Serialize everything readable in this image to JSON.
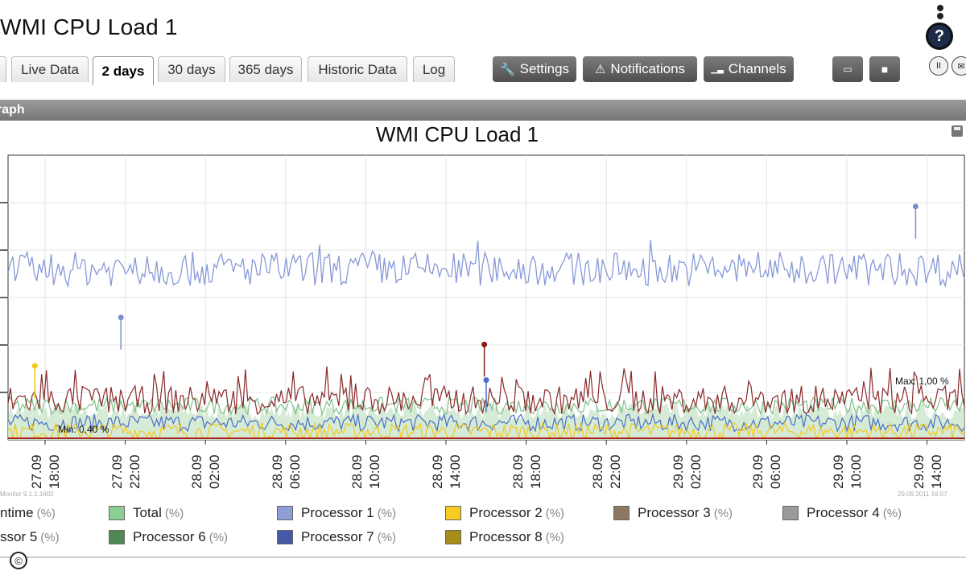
{
  "window": {
    "title": "WMI CPU Load 1"
  },
  "help": {
    "label": "?",
    "pause": "II",
    "mail": "✉"
  },
  "tabs": [
    {
      "label": "Live Data"
    },
    {
      "label": "2 days"
    },
    {
      "label": "30 days"
    },
    {
      "label": "365 days"
    },
    {
      "label": "Historic Data"
    },
    {
      "label": "Log"
    }
  ],
  "toolbar": {
    "settings": "Settings",
    "notifications": "Notifications",
    "channels": "Channels"
  },
  "panel": {
    "title": "raph"
  },
  "chart_data": {
    "type": "line",
    "title": "WMI CPU Load 1",
    "x_ticks": [
      "27.09\n18:00",
      "27.09\n22:00",
      "28.09\n02:00",
      "28.09\n06:00",
      "28.09\n10:00",
      "28.09\n14:00",
      "28.09\n18:00",
      "28.09\n22:00",
      "29.09\n02:00",
      "29.09\n06:00",
      "29.09\n10:00",
      "29.09\n14:00"
    ],
    "annotations": {
      "max": "Max: 1,00 %",
      "min": "Min: 0,40 %"
    },
    "footer_left": "Monitor 9.1.1.1602",
    "footer_right": "29.09.2011 16:07",
    "series": [
      {
        "name": "Processor 1",
        "color": "#8899d8",
        "level": 0.6,
        "amp": 0.06
      },
      {
        "name": "Processor 3",
        "color": "#8a2a2a",
        "level": 0.14,
        "amp": 0.05
      },
      {
        "name": "Total",
        "color": "#7fc08a",
        "level": 0.12,
        "amp": 0.03
      },
      {
        "name": "Processor 7",
        "color": "#4a6fc4",
        "level": 0.06,
        "amp": 0.03
      },
      {
        "name": "Processor 2",
        "color": "#f2c81c",
        "level": 0.03,
        "amp": 0.03
      }
    ]
  },
  "legend": {
    "unit": "(%)",
    "items": [
      {
        "label": "ntime",
        "color": null
      },
      {
        "label": "Total",
        "color": "#8ccf92"
      },
      {
        "label": "Processor 1",
        "color": "#8e9fd8"
      },
      {
        "label": "Processor 2",
        "color": "#f5cc1f"
      },
      {
        "label": "Processor 3",
        "color": "#8e7763"
      },
      {
        "label": "Processor 4",
        "color": "#9a9a9a"
      },
      {
        "label": "ssor 5",
        "color": null
      },
      {
        "label": "Processor 6",
        "color": "#4f8a55"
      },
      {
        "label": "Processor 7",
        "color": "#4659a9"
      },
      {
        "label": "Processor 8",
        "color": "#a88d18"
      }
    ]
  },
  "copyright": "©"
}
